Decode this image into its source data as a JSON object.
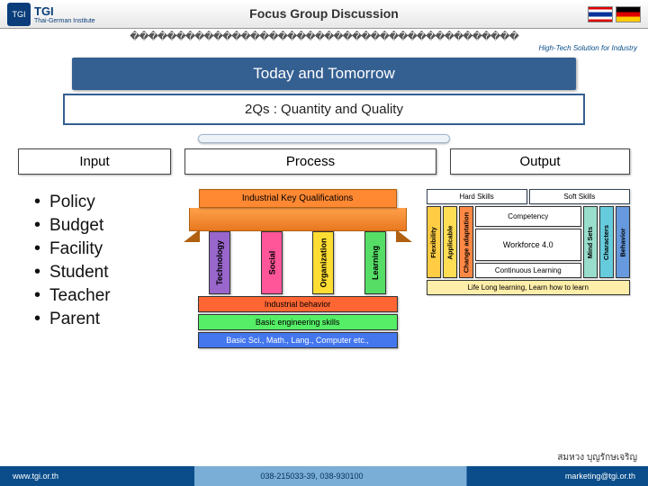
{
  "header": {
    "logo_txt": "TGI",
    "logo_sub": "Thai-German Institute",
    "title": "Focus Group Discussion",
    "tag": "High-Tech Solution for Industry",
    "deco": "������������������������������������������"
  },
  "banner": {
    "main": "Today and Tomorrow",
    "sub": "2Qs : Quantity and Quality"
  },
  "cols": {
    "input": "Input",
    "process": "Process",
    "output": "Output"
  },
  "inputs": [
    "Policy",
    "Budget",
    "Facility",
    "Student",
    "Teacher",
    "Parent"
  ],
  "house": {
    "roof": "Industrial Key Qualifications",
    "pillars": [
      "Technology",
      "Social",
      "Organization",
      "Learning"
    ],
    "bases": [
      "Industrial behavior",
      "Basic engineering skills",
      "Basic Sci., Math., Lang., Computer etc.,"
    ]
  },
  "output": {
    "top": [
      "Hard Skills",
      "Soft Skills"
    ],
    "left_cols": [
      "Flexibility",
      "Applicable",
      "Change adaptation"
    ],
    "right_cols": [
      "Mind Sets",
      "Characters",
      "Behavior"
    ],
    "mid": [
      "Competency",
      "Workforce 4.0",
      "Continuous Learning"
    ],
    "foot": "Life Long learning, Learn how to learn"
  },
  "footer": {
    "url": "www.tgi.or.th",
    "phone": "038-215033-39, 038-930100",
    "email": "marketing@tgi.or.th"
  },
  "credit": "สมหวง   บุญรักษเจริญ"
}
